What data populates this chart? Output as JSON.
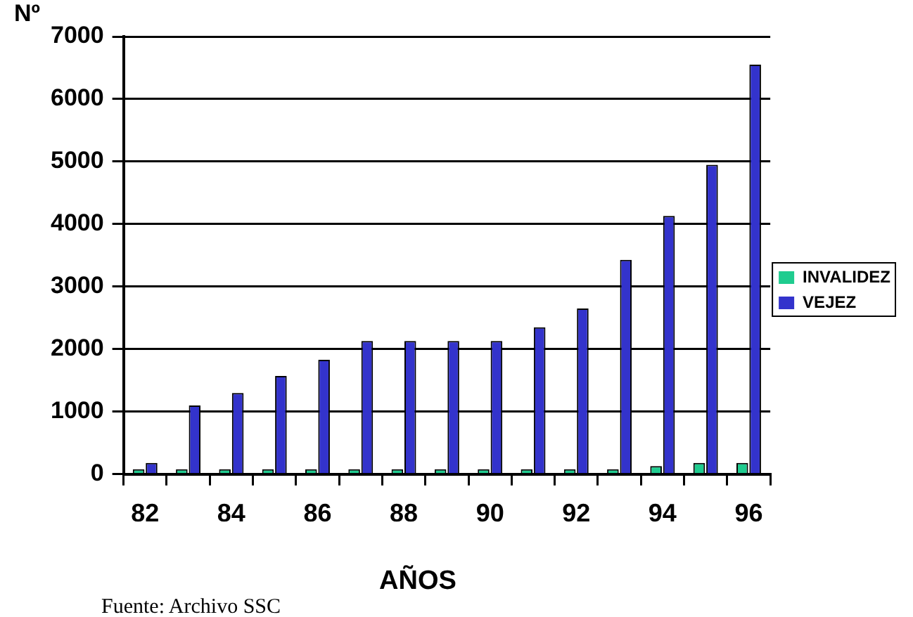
{
  "chart_data": {
    "type": "bar",
    "xlabel": "AÑOS",
    "ylabel": "Nº",
    "categories": [
      "82",
      null,
      "84",
      null,
      "86",
      null,
      "88",
      null,
      "90",
      null,
      "92",
      null,
      "94",
      null,
      "96"
    ],
    "series": [
      {
        "name": "INVALIDEZ",
        "color": "#1fcc8f",
        "values": [
          80,
          80,
          80,
          80,
          80,
          80,
          80,
          80,
          80,
          80,
          80,
          80,
          130,
          180,
          180
        ]
      },
      {
        "name": "VEJEZ",
        "color": "#3333cc",
        "values": [
          180,
          1100,
          1300,
          1570,
          1830,
          2130,
          2130,
          2130,
          2130,
          2350,
          2650,
          3430,
          4130,
          4950,
          6550
        ]
      }
    ],
    "ylim": [
      0,
      7000
    ],
    "yticks": [
      0,
      1000,
      2000,
      3000,
      4000,
      5000,
      6000,
      7000
    ],
    "grid": "y",
    "legend": "right",
    "annotations": [
      "Fuente: Archivo SSC"
    ]
  }
}
